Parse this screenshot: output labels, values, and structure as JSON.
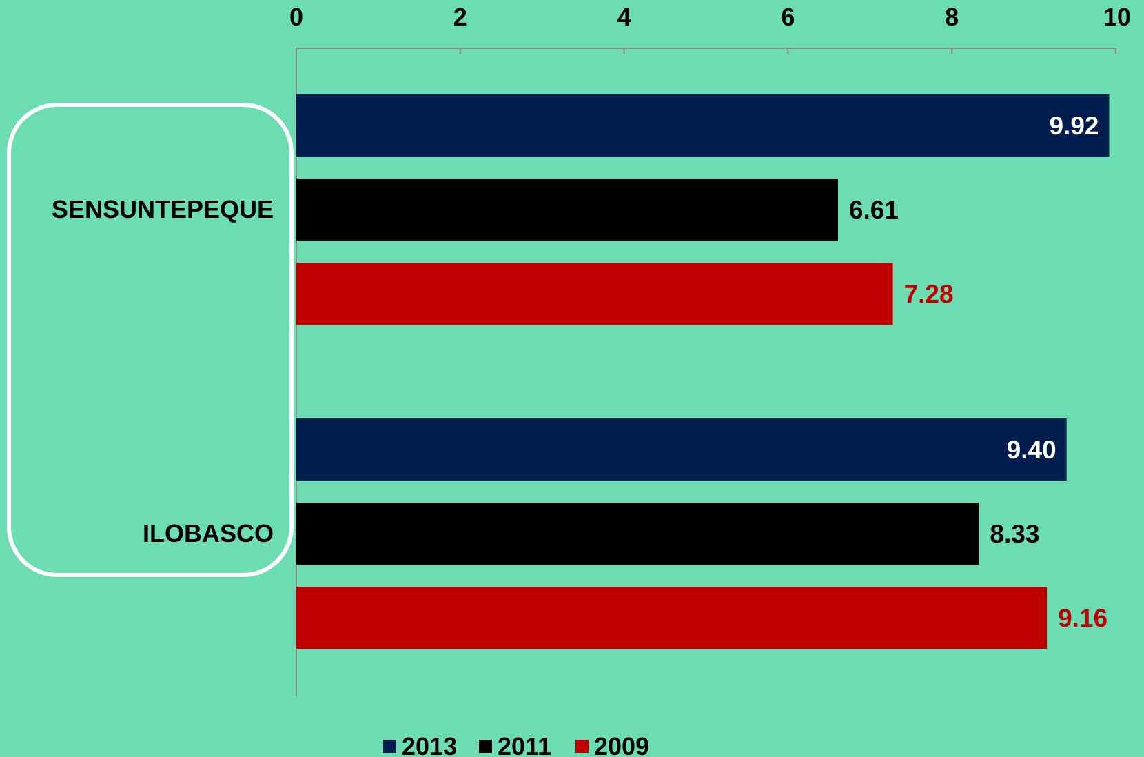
{
  "chart_data": {
    "type": "bar",
    "orientation": "horizontal",
    "categories": [
      "SENSUNTEPEQUE",
      "ILOBASCO"
    ],
    "series": [
      {
        "name": "2013",
        "values": [
          9.92,
          9.4
        ],
        "labels": [
          "9.92",
          "9.40"
        ],
        "color": "#001D50",
        "label_color": "#FFFFFF",
        "label_position": "inside-end"
      },
      {
        "name": "2011",
        "values": [
          6.61,
          8.33
        ],
        "labels": [
          "6.61",
          "8.33"
        ],
        "color": "#000000",
        "label_color": "#000000",
        "label_position": "outside-end"
      },
      {
        "name": "2009",
        "values": [
          7.28,
          9.16
        ],
        "labels": [
          "7.28",
          "9.16"
        ],
        "color": "#C00000",
        "label_color": "#C00000",
        "label_position": "outside-end"
      }
    ],
    "xlim": [
      0,
      10
    ],
    "xticks": [
      "0",
      "2",
      "4",
      "6",
      "8",
      "10"
    ],
    "x_axis_position": "top",
    "grid": false,
    "legend_position": "bottom",
    "title": "",
    "xlabel": "",
    "ylabel": "",
    "colors": {
      "background": "#6CDDB3",
      "axis": "#8C8C8C",
      "highlight_box": "#FFFFFF"
    }
  }
}
